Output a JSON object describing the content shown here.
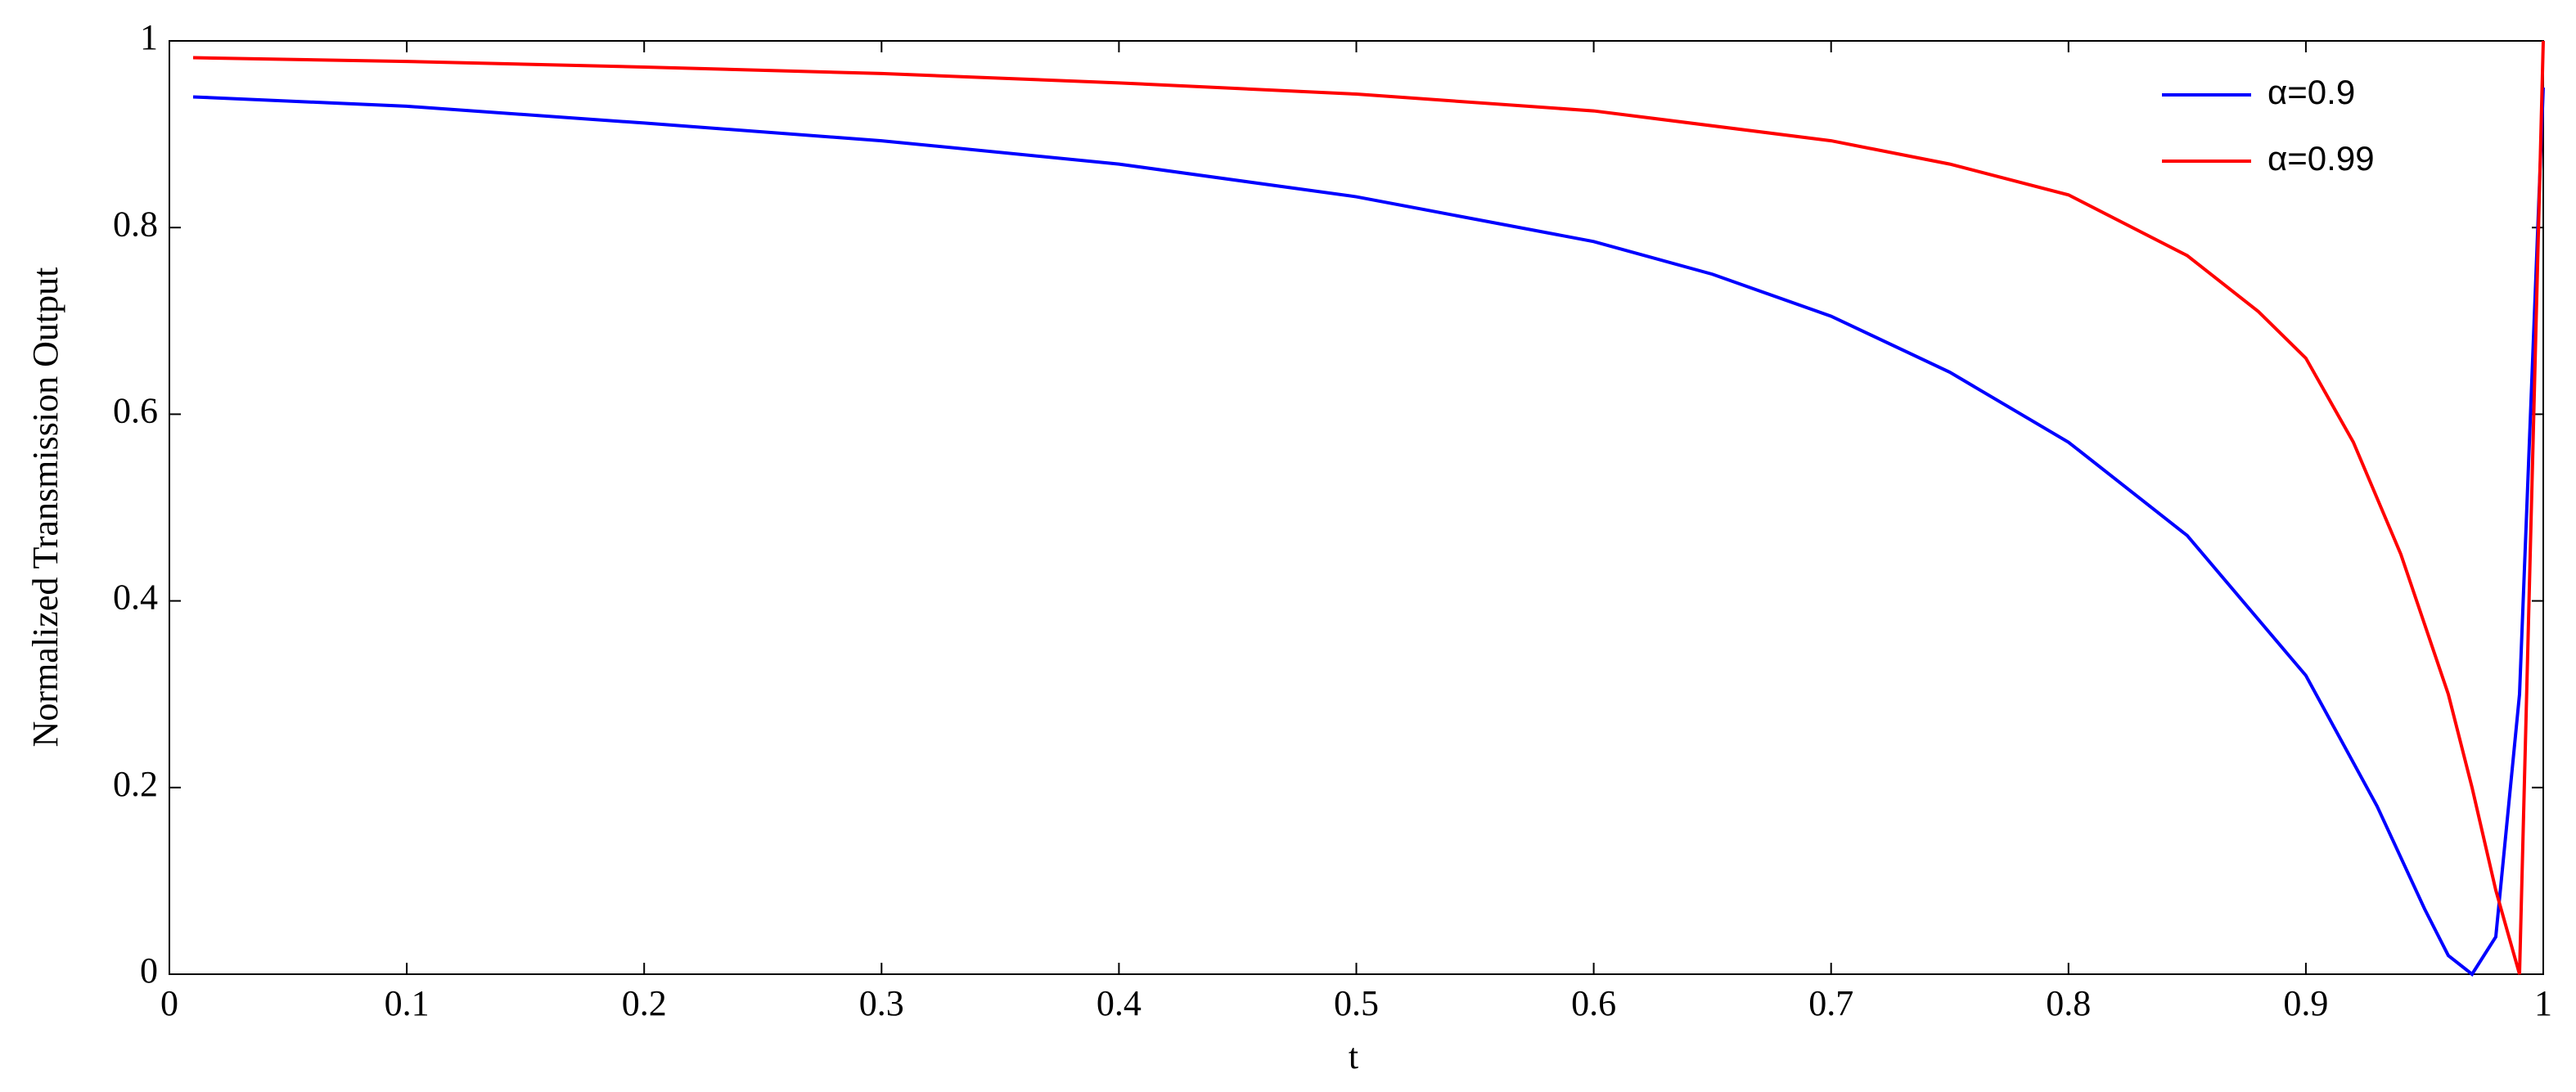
{
  "chart_data": {
    "type": "line",
    "x_label": "t",
    "y_label": "Normalized Transmission Output",
    "xlim": [
      0,
      1
    ],
    "ylim": [
      0,
      1
    ],
    "xticks": [
      0,
      0.1,
      0.2,
      0.3,
      0.4,
      0.5,
      0.6,
      0.7,
      0.8,
      0.9,
      1
    ],
    "yticks": [
      0,
      0.2,
      0.4,
      0.6,
      0.8,
      1
    ],
    "legend": "top-right",
    "series": [
      {
        "name": "α=0.9",
        "color": "#0000ff",
        "x": [
          0.01,
          0.1,
          0.2,
          0.3,
          0.4,
          0.5,
          0.6,
          0.65,
          0.7,
          0.75,
          0.8,
          0.85,
          0.9,
          0.93,
          0.95,
          0.96,
          0.97,
          0.98,
          0.99,
          1.0
        ],
        "values": [
          0.94,
          0.93,
          0.912,
          0.893,
          0.868,
          0.833,
          0.785,
          0.75,
          0.705,
          0.645,
          0.57,
          0.47,
          0.32,
          0.18,
          0.07,
          0.02,
          0,
          0.04,
          0.3,
          0.95
        ]
      },
      {
        "name": "α=0.99",
        "color": "#ff0000",
        "x": [
          0.01,
          0.1,
          0.2,
          0.3,
          0.4,
          0.5,
          0.6,
          0.7,
          0.75,
          0.8,
          0.85,
          0.88,
          0.9,
          0.92,
          0.94,
          0.96,
          0.97,
          0.98,
          0.99,
          1.0
        ],
        "values": [
          0.982,
          0.978,
          0.972,
          0.965,
          0.955,
          0.943,
          0.925,
          0.893,
          0.868,
          0.835,
          0.77,
          0.71,
          0.66,
          0.57,
          0.45,
          0.3,
          0.2,
          0.09,
          0,
          1.0
        ]
      }
    ]
  }
}
